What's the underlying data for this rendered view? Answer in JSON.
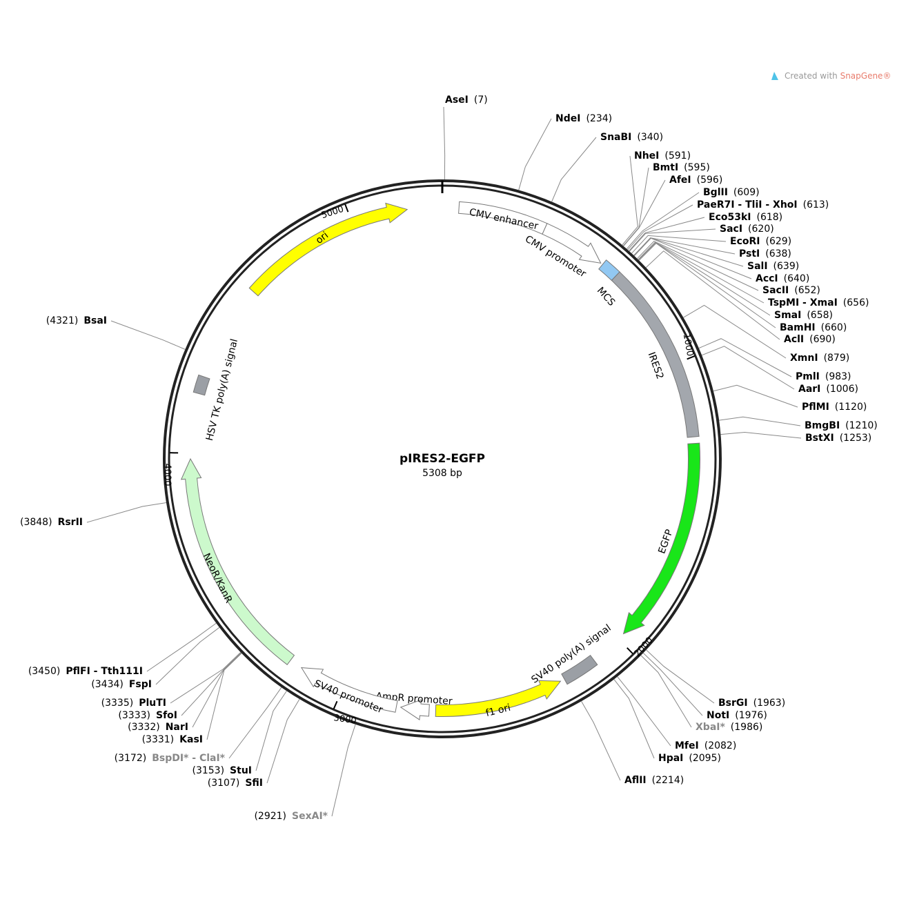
{
  "header": {
    "watermark": "Created with ",
    "brand": "SnapGene®"
  },
  "plasmid": {
    "name": "pIRES2-EGFP",
    "size": "5308 bp"
  },
  "ticks": [
    "1000",
    "2000",
    "3000",
    "4000",
    "5000"
  ],
  "features": [
    {
      "label": "CMV enhancer",
      "color": "#ffffff"
    },
    {
      "label": "CMV promoter",
      "color": "#ffffff"
    },
    {
      "label": "MCS",
      "color": "#92c8f2"
    },
    {
      "label": "IRES2",
      "color": "#a3a7ad"
    },
    {
      "label": "EGFP",
      "color": "#19e619"
    },
    {
      "label": "SV40 poly(A) signal",
      "color": "#9b9fa5"
    },
    {
      "label": "f1 ori",
      "color": "#ffff00"
    },
    {
      "label": "AmpR promoter",
      "color": "#ffffff"
    },
    {
      "label": "SV40 promoter",
      "color": "#ffffff"
    },
    {
      "label": "NeoR/KanR",
      "color": "#ccf9cc"
    },
    {
      "label": "HSV TK poly(A) signal",
      "color": "#9b9fa5"
    },
    {
      "label": "ori",
      "color": "#ffff00"
    }
  ],
  "sites": [
    {
      "name": "AseI",
      "position": "(7)"
    },
    {
      "name": "NdeI",
      "position": "(234)"
    },
    {
      "name": "SnaBI",
      "position": "(340)"
    },
    {
      "name": "NheI",
      "position": "(591)"
    },
    {
      "name": "BmtI",
      "position": "(595)"
    },
    {
      "name": "AfeI",
      "position": "(596)"
    },
    {
      "name": "BglII",
      "position": "(609)"
    },
    {
      "name": "PaeR7I - TliI - XhoI",
      "position": "(613)"
    },
    {
      "name": "Eco53kI",
      "position": "(618)"
    },
    {
      "name": "SacI",
      "position": "(620)"
    },
    {
      "name": "EcoRI",
      "position": "(629)"
    },
    {
      "name": "PstI",
      "position": "(638)"
    },
    {
      "name": "SalI",
      "position": "(639)"
    },
    {
      "name": "AccI",
      "position": "(640)"
    },
    {
      "name": "SacII",
      "position": "(652)"
    },
    {
      "name": "TspMI - XmaI",
      "position": "(656)"
    },
    {
      "name": "SmaI",
      "position": "(658)"
    },
    {
      "name": "BamHI",
      "position": "(660)"
    },
    {
      "name": "AclI",
      "position": "(690)"
    },
    {
      "name": "XmnI",
      "position": "(879)"
    },
    {
      "name": "PmlI",
      "position": "(983)"
    },
    {
      "name": "AarI",
      "position": "(1006)"
    },
    {
      "name": "PflMI",
      "position": "(1120)"
    },
    {
      "name": "BmgBI",
      "position": "(1210)"
    },
    {
      "name": "BstXI",
      "position": "(1253)"
    },
    {
      "name": "BsrGI",
      "position": "(1963)"
    },
    {
      "name": "NotI",
      "position": "(1976)"
    },
    {
      "name": "XbaI*",
      "position": "(1986)",
      "color": "#888888"
    },
    {
      "name": "MfeI",
      "position": "(2082)"
    },
    {
      "name": "HpaI",
      "position": "(2095)"
    },
    {
      "name": "AflII",
      "position": "(2214)"
    },
    {
      "name": "SexAI*",
      "position": "(2921)",
      "color": "#888888"
    },
    {
      "name": "SfiI",
      "position": "(3107)"
    },
    {
      "name": "StuI",
      "position": "(3153)"
    },
    {
      "name": "BspDI* - ClaI*",
      "position": "(3172)",
      "color": "#888888"
    },
    {
      "name": "KasI",
      "position": "(3331)"
    },
    {
      "name": "NarI",
      "position": "(3332)"
    },
    {
      "name": "SfoI",
      "position": "(3333)"
    },
    {
      "name": "PluTI",
      "position": "(3335)"
    },
    {
      "name": "FspI",
      "position": "(3434)"
    },
    {
      "name": "PflFI - Tth111I",
      "position": "(3450)"
    },
    {
      "name": "RsrII",
      "position": "(3848)"
    },
    {
      "name": "BsaI",
      "position": "(4321)"
    }
  ]
}
